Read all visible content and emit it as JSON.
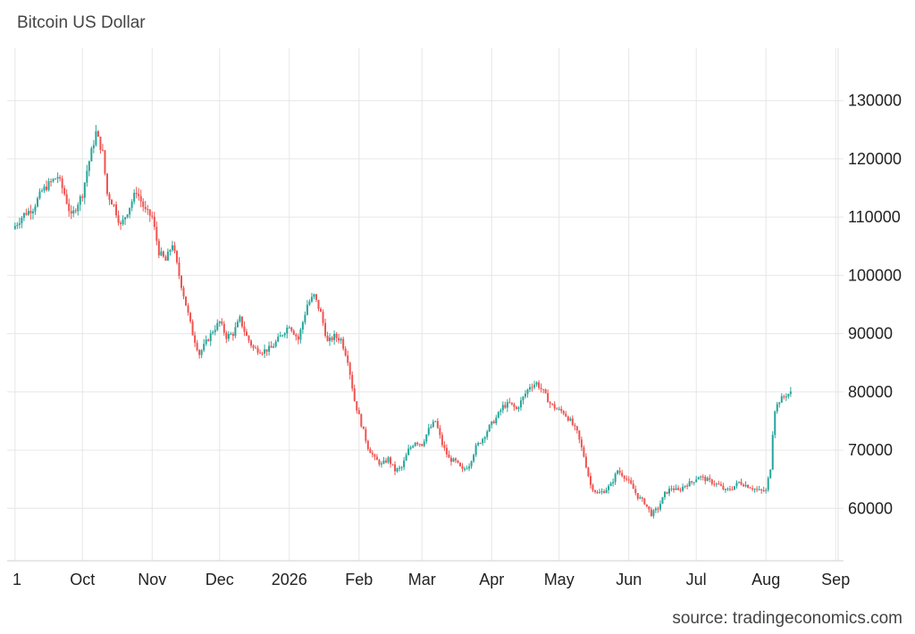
{
  "chart_data": {
    "type": "candlestick",
    "title": "Bitcoin US Dollar",
    "source": "source: tradingeconomics.com",
    "xlabel": "",
    "ylabel": "",
    "ylim": [
      51000,
      139000
    ],
    "y_ticks": [
      60000,
      70000,
      80000,
      90000,
      100000,
      110000,
      120000,
      130000
    ],
    "x_ticks": [
      "1",
      "Oct",
      "Nov",
      "Dec",
      "2026",
      "Feb",
      "Mar",
      "Apr",
      "May",
      "Jun",
      "Jul",
      "Aug",
      "Sep"
    ],
    "x_tick_days": [
      0,
      30,
      61,
      91,
      122,
      153,
      181,
      212,
      242,
      273,
      303,
      334,
      365
    ],
    "x_range_days": [
      -3.5,
      368.5
    ],
    "grid": true,
    "up_color": "#26a69a",
    "down_color": "#ef5350",
    "grid_color": "#e6e6e6",
    "close_anchors": [
      [
        0,
        108500
      ],
      [
        4,
        110500
      ],
      [
        8,
        111500
      ],
      [
        12,
        114500
      ],
      [
        16,
        116000
      ],
      [
        19,
        117000
      ],
      [
        22,
        114000
      ],
      [
        25,
        110000
      ],
      [
        28,
        112500
      ],
      [
        30,
        114000
      ],
      [
        32,
        118000
      ],
      [
        36,
        124500
      ],
      [
        39,
        121000
      ],
      [
        41,
        114000
      ],
      [
        44,
        112000
      ],
      [
        47,
        108500
      ],
      [
        50,
        111000
      ],
      [
        54,
        114500
      ],
      [
        58,
        111000
      ],
      [
        61,
        110000
      ],
      [
        64,
        104000
      ],
      [
        67,
        102500
      ],
      [
        70,
        105500
      ],
      [
        73,
        100000
      ],
      [
        76,
        95000
      ],
      [
        79,
        90000
      ],
      [
        82,
        86500
      ],
      [
        85,
        88500
      ],
      [
        88,
        90500
      ],
      [
        91,
        92000
      ],
      [
        94,
        89500
      ],
      [
        97,
        90000
      ],
      [
        100,
        92500
      ],
      [
        103,
        89500
      ],
      [
        106,
        87500
      ],
      [
        110,
        87000
      ],
      [
        114,
        87500
      ],
      [
        118,
        89500
      ],
      [
        122,
        91500
      ],
      [
        126,
        89000
      ],
      [
        130,
        95000
      ],
      [
        133,
        96500
      ],
      [
        136,
        93500
      ],
      [
        139,
        88500
      ],
      [
        142,
        89500
      ],
      [
        145,
        89000
      ],
      [
        148,
        85500
      ],
      [
        151,
        78500
      ],
      [
        154,
        74500
      ],
      [
        157,
        70500
      ],
      [
        160,
        68500
      ],
      [
        163,
        67500
      ],
      [
        166,
        68500
      ],
      [
        169,
        66500
      ],
      [
        172,
        67000
      ],
      [
        175,
        70000
      ],
      [
        178,
        71500
      ],
      [
        181,
        71000
      ],
      [
        184,
        73500
      ],
      [
        187,
        75000
      ],
      [
        190,
        71000
      ],
      [
        193,
        68500
      ],
      [
        196,
        68000
      ],
      [
        199,
        66500
      ],
      [
        202,
        67500
      ],
      [
        205,
        70500
      ],
      [
        208,
        72000
      ],
      [
        211,
        74000
      ],
      [
        214,
        75500
      ],
      [
        217,
        77500
      ],
      [
        220,
        78000
      ],
      [
        223,
        77000
      ],
      [
        226,
        79000
      ],
      [
        229,
        81000
      ],
      [
        232,
        81500
      ],
      [
        235,
        80000
      ],
      [
        238,
        78000
      ],
      [
        241,
        77000
      ],
      [
        244,
        76500
      ],
      [
        247,
        75000
      ],
      [
        250,
        73000
      ],
      [
        253,
        69000
      ],
      [
        256,
        64000
      ],
      [
        259,
        62500
      ],
      [
        262,
        63000
      ],
      [
        265,
        64000
      ],
      [
        268,
        66500
      ],
      [
        271,
        65500
      ],
      [
        274,
        64000
      ],
      [
        277,
        62000
      ],
      [
        280,
        61000
      ],
      [
        283,
        59000
      ],
      [
        286,
        60000
      ],
      [
        289,
        62500
      ],
      [
        292,
        63500
      ],
      [
        295,
        63000
      ],
      [
        298,
        64000
      ],
      [
        301,
        64500
      ],
      [
        304,
        65500
      ],
      [
        307,
        65000
      ],
      [
        310,
        64500
      ],
      [
        313,
        64000
      ],
      [
        316,
        63000
      ],
      [
        319,
        63500
      ],
      [
        322,
        64500
      ],
      [
        325,
        64000
      ],
      [
        328,
        63500
      ],
      [
        331,
        63000
      ],
      [
        334,
        63000
      ],
      [
        336,
        67000
      ],
      [
        337,
        73000
      ],
      [
        338,
        77000
      ],
      [
        340,
        78500
      ],
      [
        343,
        79500
      ],
      [
        345,
        79800
      ]
    ]
  }
}
